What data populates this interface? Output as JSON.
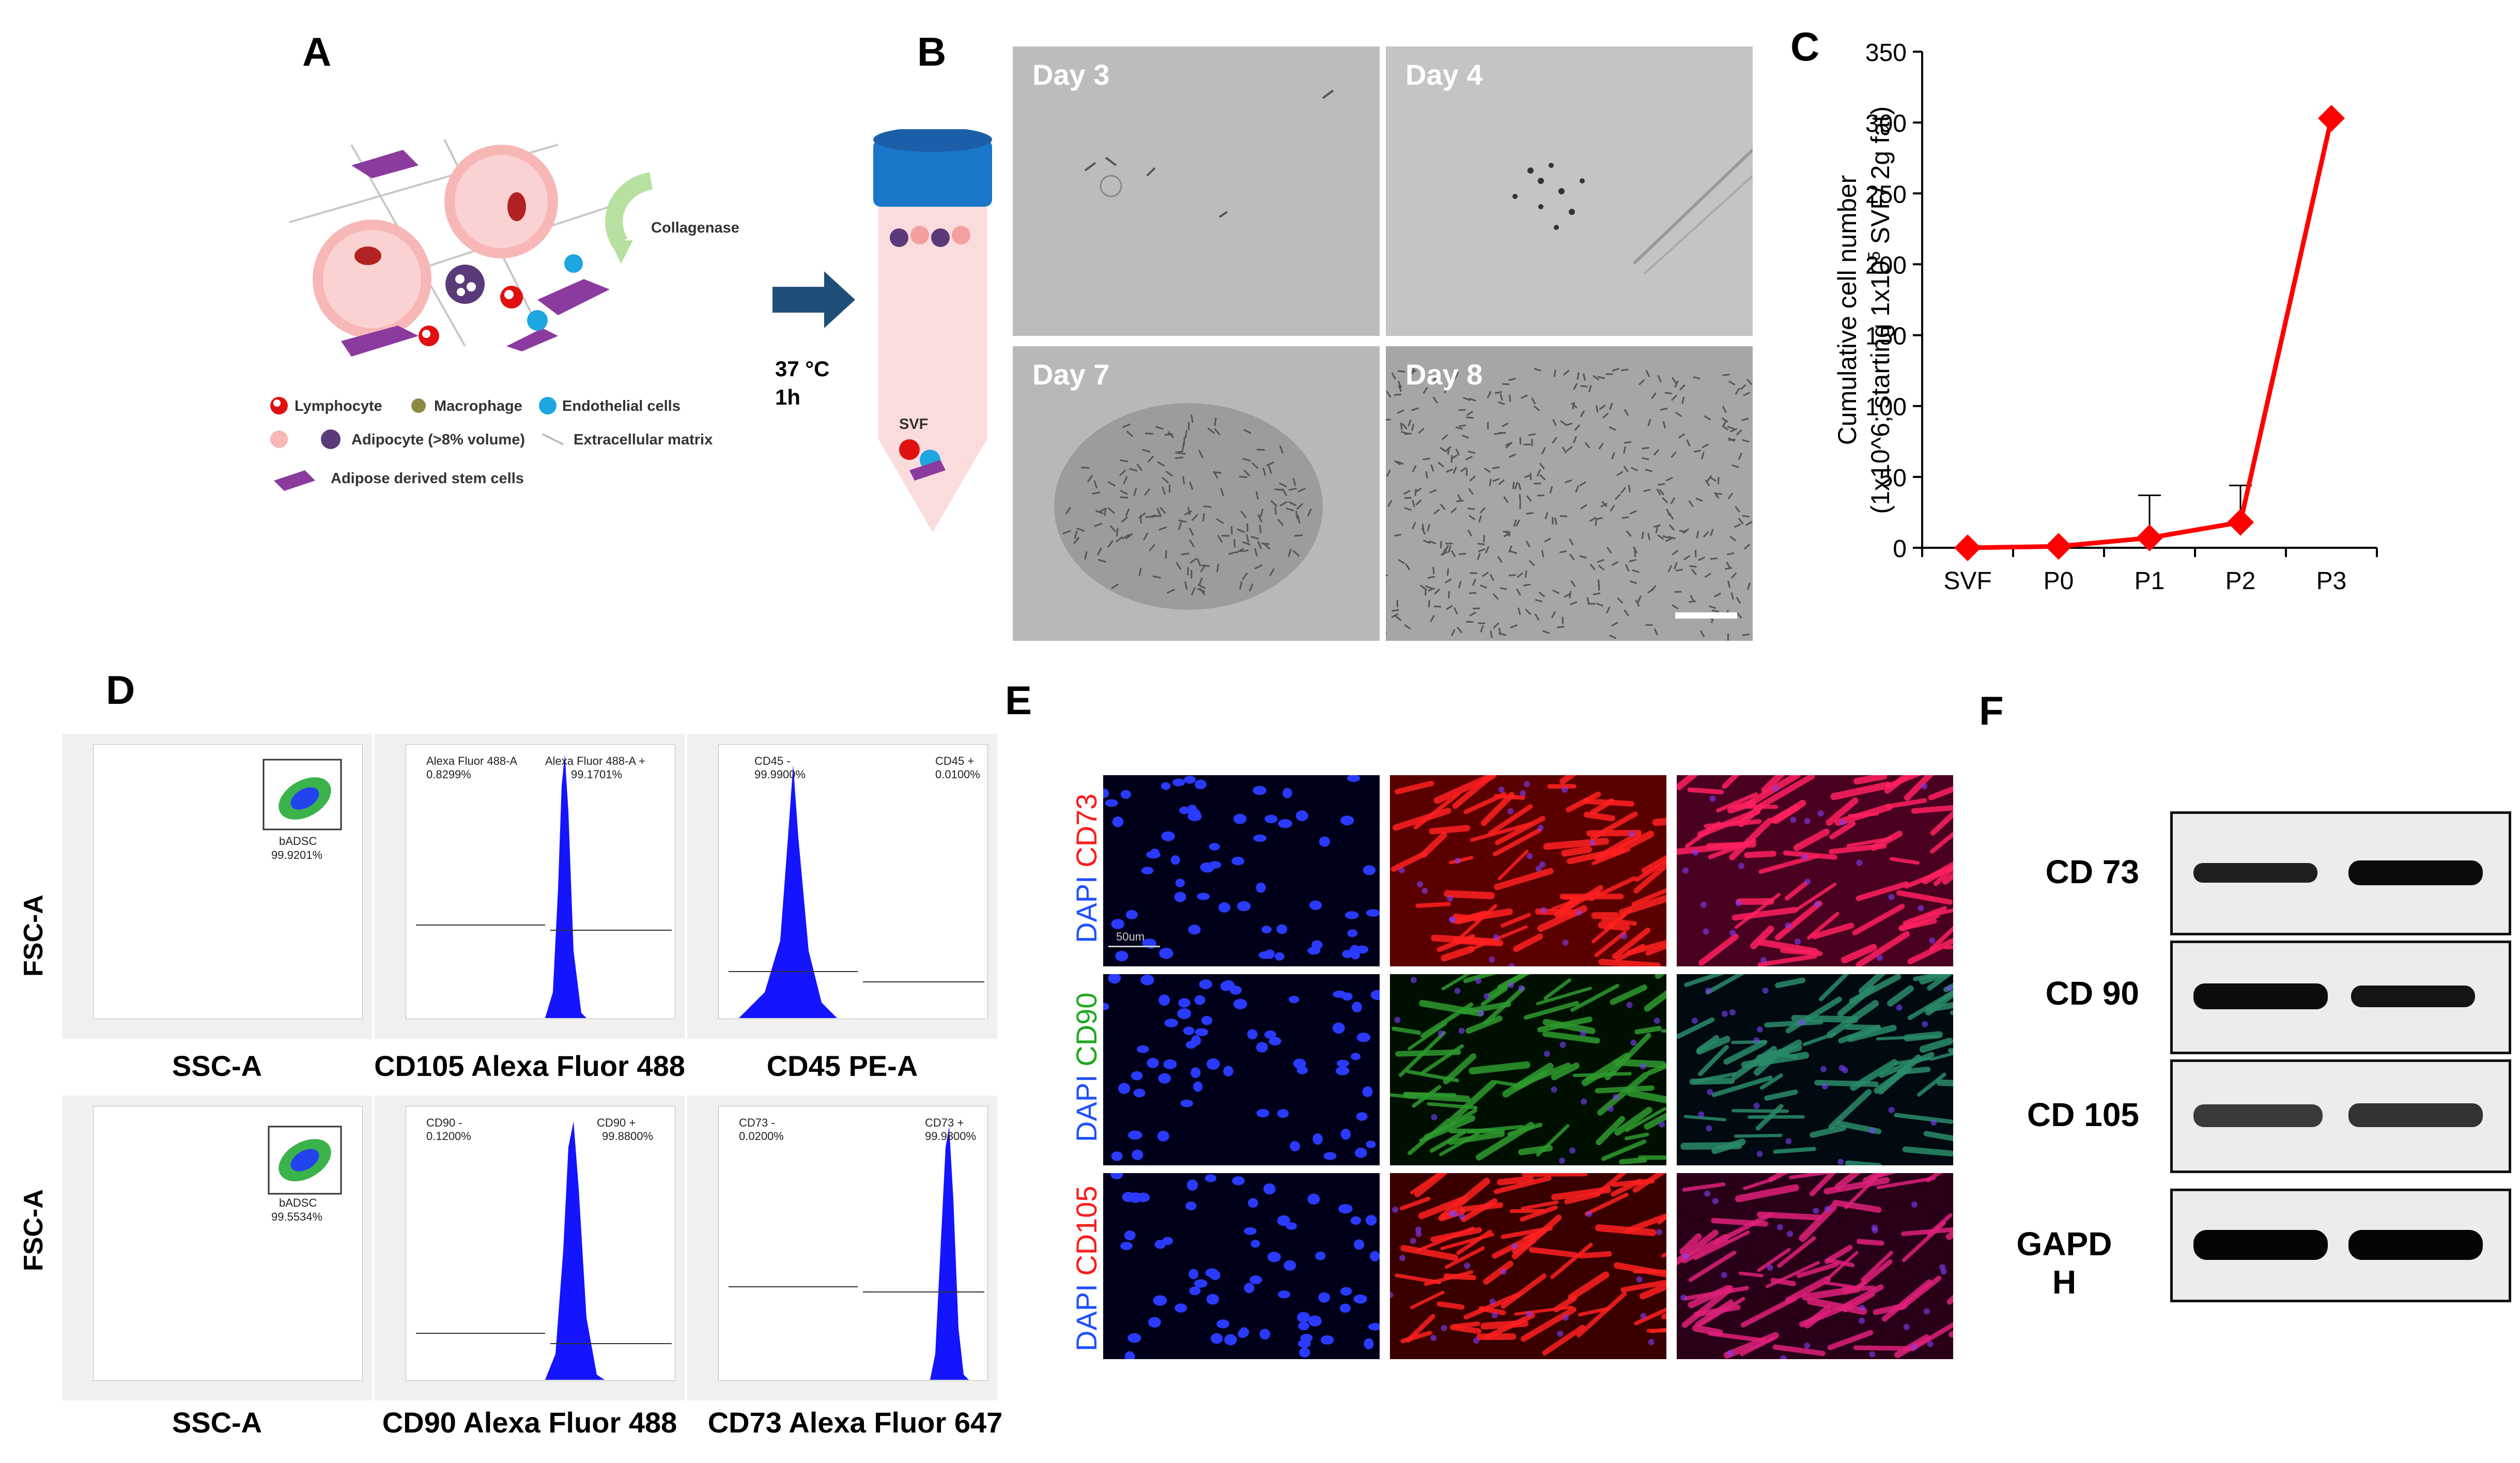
{
  "panels": {
    "A": "A",
    "B": "B",
    "C": "C",
    "D": "D",
    "E": "E",
    "F": "F"
  },
  "panel_a": {
    "collagenase": "Collagenase",
    "temp": "37 °C",
    "time": "1h",
    "svf": "SVF",
    "legend": {
      "lymphocyte": "Lymphocyte",
      "macrophage": "Macrophage",
      "endothelial": "Endothelial cells",
      "adipocyte": "Adipocyte (>8% volume)",
      "ecm": "Extracellular matrix",
      "adsc": "Adipose derived stem cells"
    }
  },
  "panel_b": {
    "day3": "Day 3",
    "day4": "Day 4",
    "day7": "Day 7",
    "day8": "Day 8"
  },
  "chart_data": {
    "type": "line",
    "categories": [
      "SVF",
      "P0",
      "P1",
      "P2",
      "P3"
    ],
    "values": [
      0,
      1,
      7,
      18,
      303
    ],
    "error_upper": [
      0,
      0,
      30,
      26,
      0
    ],
    "ylabel_line1": "Cumulative cell number",
    "ylabel_line2": "(1x10^6; starting 1x10",
    "ylabel_sup": "5",
    "ylabel_line3": " SVF/ 2g fat)",
    "ylim": [
      0,
      350
    ],
    "yticks": [
      0,
      50,
      100,
      150,
      200,
      250,
      300,
      350
    ],
    "color": "#ff0000"
  },
  "panel_d": {
    "ylabel": "FSC-A",
    "row1": {
      "scatter_x": "SSC-A",
      "scatter_gate": "bADSC",
      "scatter_pct": "99.9201%",
      "h1_x": "CD105 Alexa Fluor 488",
      "h1_left": "Alexa Fluor 488-A",
      "h1_left_pct": "0.8299%",
      "h1_right": "Alexa Fluor 488-A +",
      "h1_right_pct": "99.1701%",
      "h2_x": "CD45 PE-A",
      "h2_left": "CD45 -",
      "h2_left_pct": "99.9900%",
      "h2_right": "CD45 +",
      "h2_right_pct": "0.0100%"
    },
    "row2": {
      "scatter_x": "SSC-A",
      "scatter_gate": "bADSC",
      "scatter_pct": "99.5534%",
      "h1_x": "CD90 Alexa Fluor 488",
      "h1_left": "CD90 -",
      "h1_left_pct": "0.1200%",
      "h1_right": "CD90 +",
      "h1_right_pct": "99.8800%",
      "h2_x": "CD73 Alexa Fluor 647",
      "h2_left": "CD73 -",
      "h2_left_pct": "0.0200%",
      "h2_right": "CD73 +",
      "h2_right_pct": "99.9800%"
    }
  },
  "panel_e": {
    "row1_dapi": "DAPI",
    "row1_marker": "CD73",
    "row2_dapi": "DAPI",
    "row2_marker": "CD90",
    "row3_dapi": "DAPI",
    "row3_marker": "CD105",
    "scale": "50um",
    "colors": {
      "dapi": "#1f4fff",
      "red": "#ff1a1a",
      "green": "#1fa81f"
    }
  },
  "panel_f": {
    "cd73": "CD 73",
    "cd90": "CD 90",
    "cd105": "CD 105",
    "gapdh_1": "GAPD",
    "gapdh_2": "H"
  }
}
